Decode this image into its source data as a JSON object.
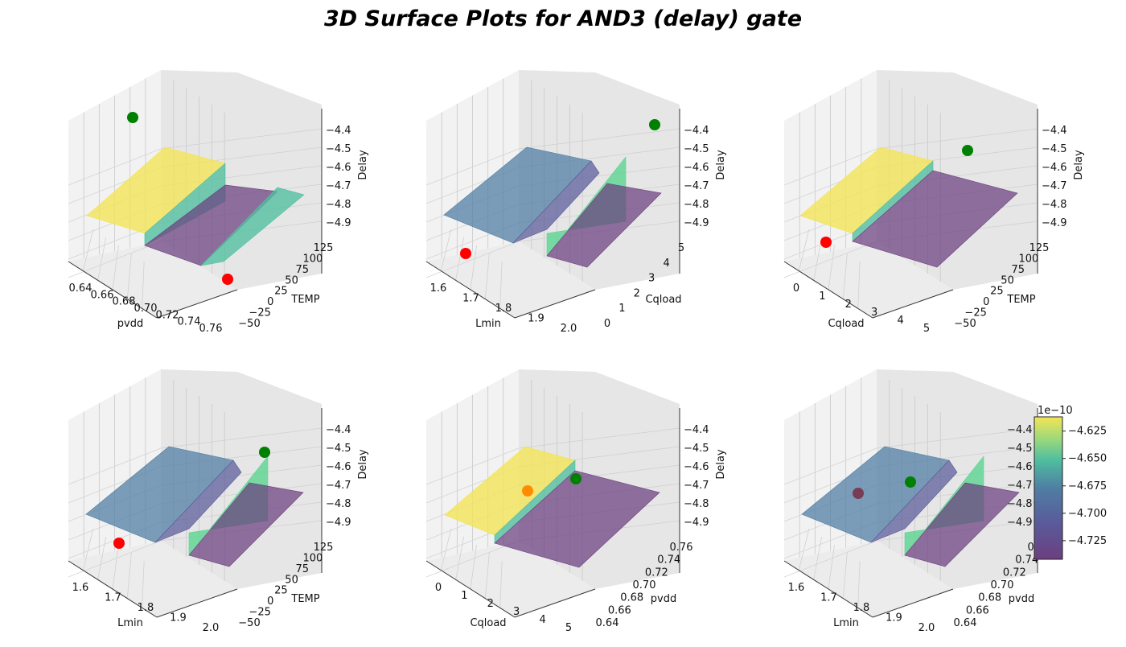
{
  "title": "3D Surface Plots for AND3 (delay) gate",
  "chart_data": [
    {
      "type": "surface3d",
      "xlabel": "pvdd",
      "ylabel": "TEMP",
      "zlabel": "Delay",
      "xticks": [
        "0.64",
        "0.66",
        "0.68",
        "0.70",
        "0.72",
        "0.74",
        "0.76"
      ],
      "yticks": [
        "-50",
        "-25",
        "0",
        "25",
        "50",
        "75",
        "100",
        "125"
      ],
      "zticks": [
        "-4.4",
        "-4.5",
        "-4.6",
        "-4.7",
        "-4.8",
        "-4.9"
      ],
      "surface": "surface-1",
      "points": [
        {
          "color": "#008000"
        },
        {
          "color": "#ff0000"
        }
      ]
    },
    {
      "type": "surface3d",
      "xlabel": "Lmin",
      "ylabel": "Cqload",
      "zlabel": "Delay",
      "xticks": [
        "1.6",
        "1.7",
        "1.8",
        "1.9",
        "2.0"
      ],
      "yticks": [
        "0",
        "1",
        "2",
        "3",
        "4",
        "5"
      ],
      "zticks": [
        "-4.4",
        "-4.5",
        "-4.6",
        "-4.7",
        "-4.8",
        "-4.9"
      ],
      "surface": "surface-2",
      "points": [
        {
          "color": "#008000"
        },
        {
          "color": "#ff0000"
        }
      ]
    },
    {
      "type": "surface3d",
      "xlabel": "Cqload",
      "ylabel": "TEMP",
      "zlabel": "Delay",
      "xticks": [
        "0",
        "1",
        "2",
        "3",
        "4",
        "5"
      ],
      "yticks": [
        "-50",
        "-25",
        "0",
        "25",
        "50",
        "75",
        "100",
        "125"
      ],
      "zticks": [
        "-4.4",
        "-4.5",
        "-4.6",
        "-4.7",
        "-4.8",
        "-4.9"
      ],
      "surface": "surface-3",
      "points": [
        {
          "color": "#008000"
        },
        {
          "color": "#ff0000"
        }
      ]
    },
    {
      "type": "surface3d",
      "xlabel": "Lmin",
      "ylabel": "TEMP",
      "zlabel": "Delay",
      "xticks": [
        "1.6",
        "1.7",
        "1.8",
        "1.9",
        "2.0"
      ],
      "yticks": [
        "-50",
        "-25",
        "0",
        "25",
        "50",
        "75",
        "100",
        "125"
      ],
      "zticks": [
        "-4.4",
        "-4.5",
        "-4.6",
        "-4.7",
        "-4.8",
        "-4.9"
      ],
      "surface": "surface-4",
      "points": [
        {
          "color": "#008000"
        },
        {
          "color": "#ff0000"
        }
      ]
    },
    {
      "type": "surface3d",
      "xlabel": "Cqload",
      "ylabel": "pvdd",
      "zlabel": "Delay",
      "xticks": [
        "0",
        "1",
        "2",
        "3",
        "4",
        "5"
      ],
      "yticks": [
        "0.64",
        "0.66",
        "0.68",
        "0.70",
        "0.72",
        "0.74",
        "0.76"
      ],
      "zticks": [
        "-4.4",
        "-4.5",
        "-4.6",
        "-4.7",
        "-4.8",
        "-4.9"
      ],
      "surface": "surface-5",
      "points": [
        {
          "color": "#008000"
        },
        {
          "color": "#ff8c00"
        }
      ]
    },
    {
      "type": "surface3d",
      "xlabel": "Lmin",
      "ylabel": "pvdd",
      "zlabel": "",
      "xticks": [
        "1.6",
        "1.7",
        "1.8",
        "1.9",
        "2.0"
      ],
      "yticks": [
        "0.64",
        "0.66",
        "0.68",
        "0.70",
        "0.72",
        "0.74",
        "0.76"
      ],
      "zticks": [
        "-4.4",
        "-4.5",
        "-4.6",
        "-4.7",
        "-4.8",
        "-4.9"
      ],
      "surface": "surface-6",
      "points": [
        {
          "color": "#008000"
        },
        {
          "color": "#7a3c54"
        }
      ]
    }
  ],
  "colorbar": {
    "exponent": "1e−10",
    "ticks": [
      -4.625,
      -4.65,
      -4.675,
      -4.7,
      -4.725
    ],
    "tick_labels": [
      "−4.625",
      "−4.650",
      "−4.675",
      "−4.700",
      "−4.725"
    ],
    "range": [
      -4.742,
      -4.612
    ],
    "colormap": "viridis"
  }
}
